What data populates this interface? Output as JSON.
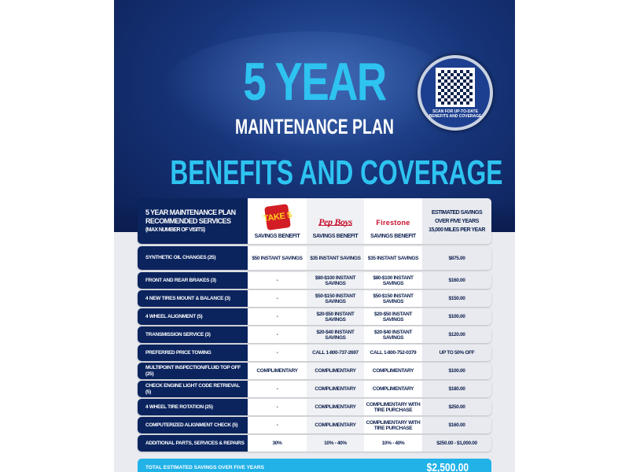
{
  "title": {
    "line1": "5 YEAR",
    "line2": "MAINTENANCE PLAN",
    "line3": "BENEFITS AND COVERAGE"
  },
  "qr": {
    "caption": "SCAN FOR UP-TO-DATE BENEFITS AND COVERAGE"
  },
  "header": {
    "label_lines": [
      "5 YEAR MAINTENANCE PLAN",
      "RECOMMENDED SERVICES",
      "(MAX NUMBER OF VISITS)"
    ],
    "logos": [
      "TAKE 5",
      "Pep Boys",
      "Firestone"
    ],
    "columns": [
      "SAVINGS BENEFIT",
      "SAVINGS BENEFIT",
      "SAVINGS BENEFIT"
    ],
    "estimate_lines": [
      "ESTIMATED SAVINGS",
      "OVER FIVE YEARS",
      "15,000 MILES PER YEAR"
    ]
  },
  "rows": [
    {
      "service": "SYNTHETIC OIL CHANGES (25)",
      "take5": "$50 INSTANT SAVINGS",
      "pepboys": "$35 INSTANT SAVINGS",
      "firestone": "$35 INSTANT SAVINGS",
      "estimate": "$875.00"
    },
    {
      "service": "FRONT AND REAR BRAKES (3)",
      "take5": "-",
      "pepboys": "$80-$100 INSTANT SAVINGS",
      "firestone": "$80-$100 INSTANT SAVINGS",
      "estimate": "$160.00"
    },
    {
      "service": "4 NEW TIRES MOUNT & BALANCE (3)",
      "take5": "-",
      "pepboys": "$50-$150 INSTANT SAVINGS",
      "firestone": "$50-$150 INSTANT SAVINGS",
      "estimate": "$150.00"
    },
    {
      "service": "4 WHEEL ALIGNMENT (5)",
      "take5": "-",
      "pepboys": "$20-$50 INSTANT SAVINGS",
      "firestone": "$20-$50 INSTANT SAVINGS",
      "estimate": "$100.00"
    },
    {
      "service": "TRANSMISSION SERVICE (3)",
      "take5": "-",
      "pepboys": "$20-$40 INSTANT SAVINGS",
      "firestone": "$20-$40 INSTANT SAVINGS",
      "estimate": "$120.00"
    },
    {
      "service": "PREFERRED PRICE TOWING",
      "take5": "-",
      "pepboys": "CALL 1-800-737-2697",
      "firestone": "CALL 1-800-752-0379",
      "estimate": "UP TO 50% OFF"
    },
    {
      "service": "MULTIPOINT INSPECTION/FLUID TOP OFF (25)",
      "take5": "COMPLIMENTARY",
      "pepboys": "COMPLIMENTARY",
      "firestone": "COMPLIMENTARY",
      "estimate": "$100.00"
    },
    {
      "service": "CHECK ENGINE LIGHT CODE RETRIEVAL (5)",
      "take5": "-",
      "pepboys": "COMPLIMENTARY",
      "firestone": "COMPLIMENTARY",
      "estimate": "$180.00"
    },
    {
      "service": "4 WHEEL TIRE ROTATION (25)",
      "take5": "-",
      "pepboys": "COMPLIMENTARY",
      "firestone": "COMPLIMENTARY WITH TIRE PURCHASE",
      "estimate": "$250.00"
    },
    {
      "service": "COMPUTERIZED ALIGNMENT CHECK (5)",
      "take5": "-",
      "pepboys": "COMPLIMENTARY",
      "firestone": "COMPLIMENTARY WITH TIRE PURCHASE",
      "estimate": "$160.00"
    },
    {
      "service": "ADDITIONAL PARTS, SERVICES & REPAIRS",
      "take5": "30%",
      "pepboys": "10% - 40%",
      "firestone": "10% - 40%",
      "estimate": "$250.00 - $1,000.00"
    }
  ],
  "total": {
    "label": "TOTAL ESTIMATED SAVINGS OVER FIVE YEARS",
    "value": "$2,500.00"
  },
  "colors": {
    "navy": "#0b245e",
    "cyan": "#2ec3f0",
    "total_bar": "#21b2e8"
  }
}
